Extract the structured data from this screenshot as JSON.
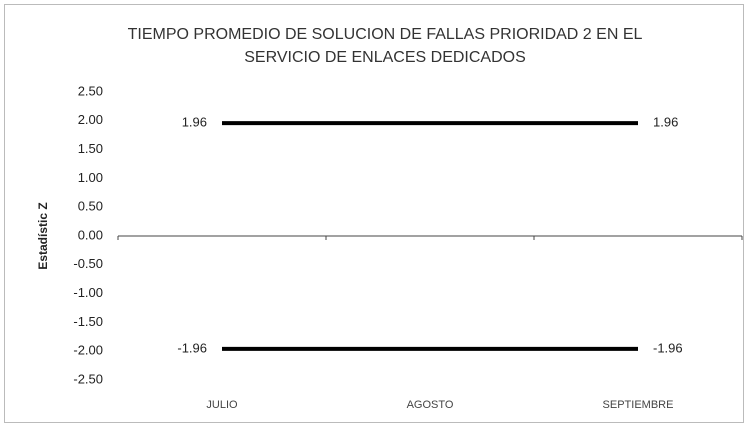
{
  "chart_data": {
    "type": "line",
    "title": [
      "TIEMPO PROMEDIO DE SOLUCION DE FALLAS PRIORIDAD 2 EN EL",
      "SERVICIO DE ENLACES DEDICADOS"
    ],
    "y_label": "Estadístic Z",
    "categories": [
      "JULIO",
      "AGOSTO",
      "SEPTIEMBRE"
    ],
    "series": [
      {
        "color": "#000000",
        "values": [
          1.96,
          1.96,
          1.96
        ],
        "value_labels": [
          "1.96",
          null,
          "1.96"
        ]
      },
      {
        "color": "#000000",
        "values": [
          -1.96,
          -1.96,
          -1.96
        ],
        "value_labels": [
          "-1.96",
          null,
          "-1.96"
        ]
      }
    ],
    "ylim": [
      -2.5,
      2.5
    ],
    "yticks": [
      {
        "value": 2.5,
        "label": "2.50"
      },
      {
        "value": 2,
        "label": "2.00"
      },
      {
        "value": 1.5,
        "label": "1.50"
      },
      {
        "value": 1,
        "label": "1.00"
      },
      {
        "value": 0.5,
        "label": "0.50"
      },
      {
        "value": 0,
        "label": "0.00"
      },
      {
        "value": -0.5,
        "label": "-0.50"
      },
      {
        "value": -1,
        "label": "-1.00"
      },
      {
        "value": -1.5,
        "label": "-1.50"
      },
      {
        "value": -2,
        "label": "-2.00"
      },
      {
        "value": -2.5,
        "label": "-2.50"
      }
    ],
    "grid": false
  }
}
